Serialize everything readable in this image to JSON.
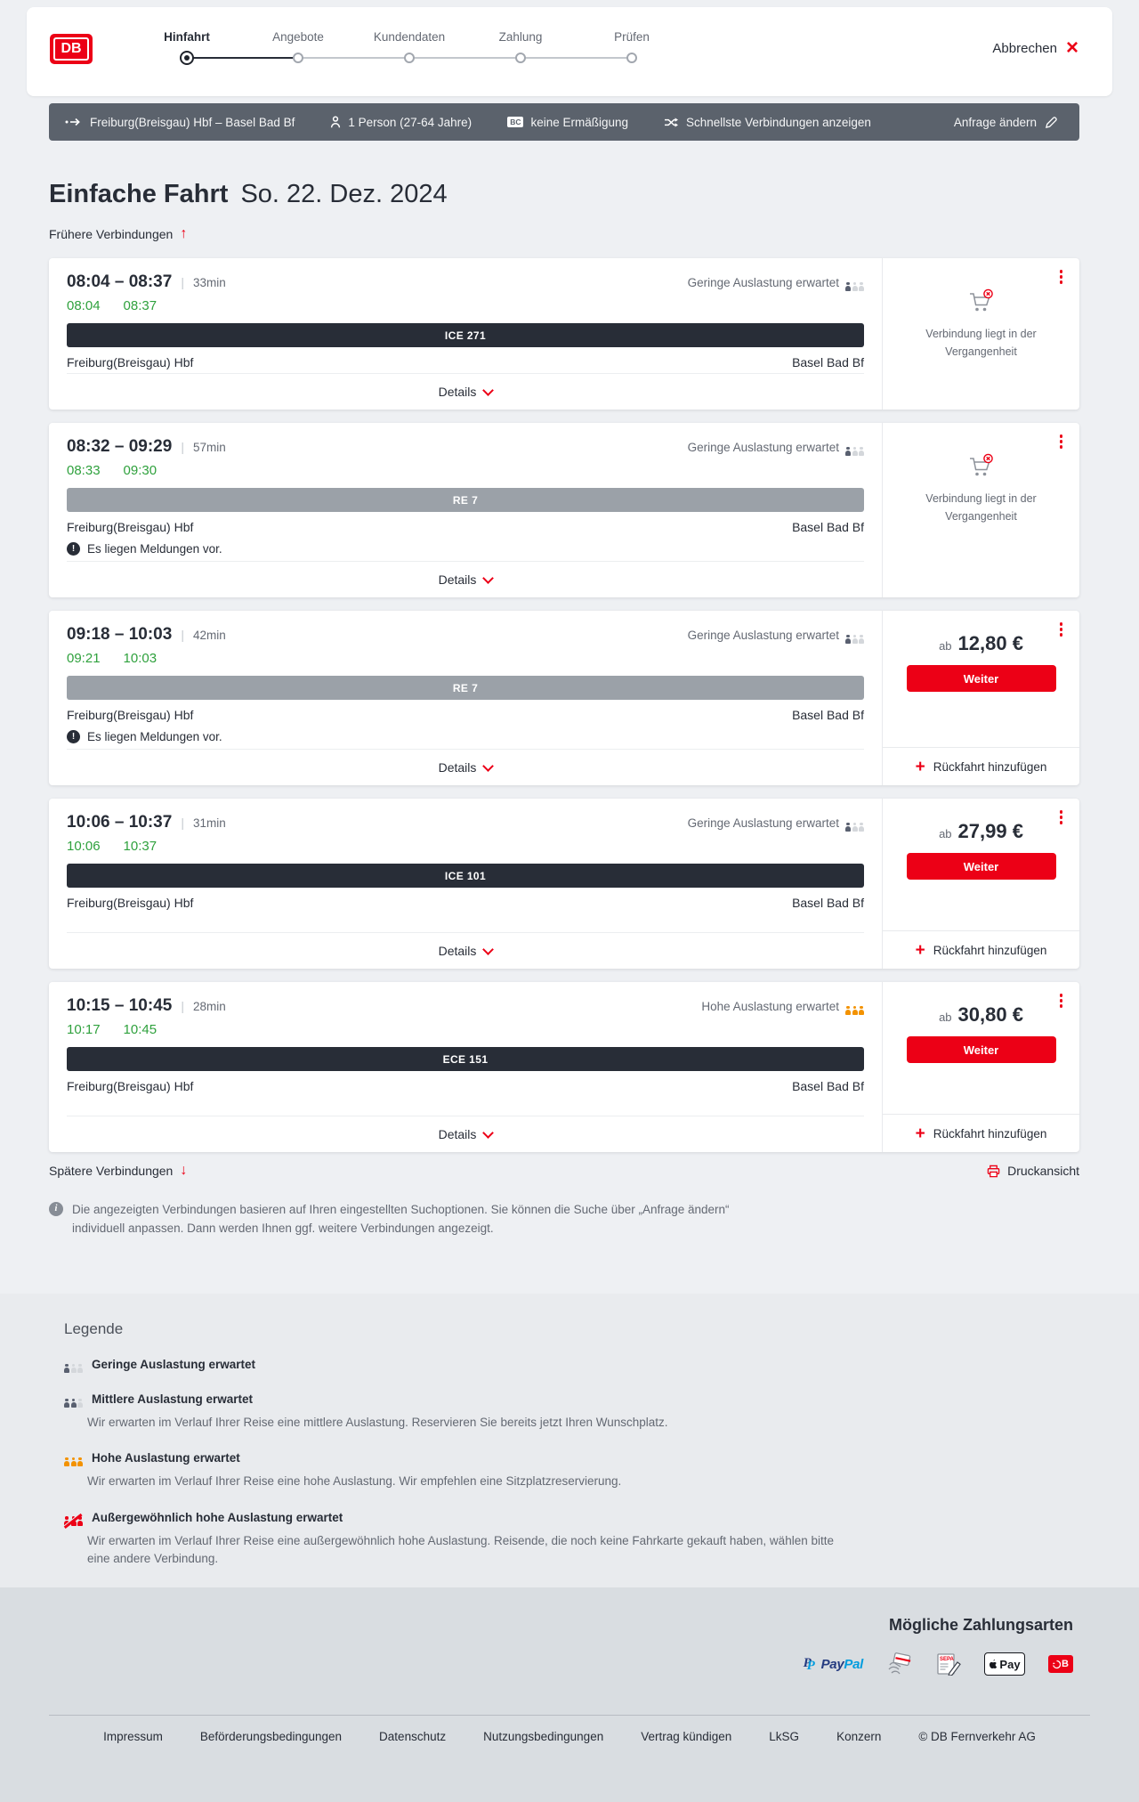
{
  "colors": {
    "accent_red": "#ec0016",
    "text_dark": "#282d37",
    "text_gray": "#646973",
    "time_green": "#2fa13d",
    "train_bar_express": "#282d37",
    "train_bar_regional": "#9ba1a8",
    "occupancy_person": "#596070",
    "occupancy_person_faint": "#d4d7db",
    "occupancy_high": "#f39200",
    "occupancy_exceptional": "#ec0016",
    "summary_bar_bg": "#5b626c"
  },
  "header": {
    "logo": "DB",
    "steps": [
      {
        "label": "Hinfahrt",
        "state": "active"
      },
      {
        "label": "Angebote",
        "state": "upcoming"
      },
      {
        "label": "Kundendaten",
        "state": "upcoming"
      },
      {
        "label": "Zahlung",
        "state": "upcoming"
      },
      {
        "label": "Prüfen",
        "state": "upcoming"
      }
    ],
    "cancel_label": "Abbrechen",
    "close_icon": "×"
  },
  "search_summary": {
    "route": "Freiburg(Breisgau) Hbf – Basel Bad Bf",
    "passengers": "1 Person (27-64 Jahre)",
    "bc_badge": "BC",
    "discount": "keine Ermäßigung",
    "sort": "Schnellste Verbindungen anzeigen",
    "edit_label": "Anfrage ändern"
  },
  "results": {
    "title": "Einfache Fahrt",
    "date": "So. 22. Dez. 2024",
    "earlier_label": "Frühere Verbindungen",
    "later_label": "Spätere Verbindungen",
    "print_label": "Druckansicht",
    "details_label": "Details",
    "continue_label": "Weiter",
    "add_return_label": "Rückfahrt hinzufügen",
    "price_prefix": "ab",
    "past_note": "Verbindung liegt in der Vergangenheit",
    "messages_note": "Es liegen Meldungen vor.",
    "info_text": "Die angezeigten Verbindungen basieren auf Ihren eingestellten Suchoptionen. Sie können die Suche über „Anfrage ändern“ individuell anpassen. Dann werden Ihnen ggf. weitere Verbindungen angezeigt.",
    "connections": [
      {
        "time_range": "08:04 – 08:37",
        "duration": "33min",
        "departure": "08:04",
        "arrival": "08:37",
        "train": "ICE 271",
        "train_style": "express",
        "from": "Freiburg(Breisgau) Hbf",
        "to": "Basel Bad Bf",
        "occupancy_label": "Geringe Auslastung erwartet",
        "occupancy_level": "low",
        "is_past": true,
        "has_messages": false,
        "price": null
      },
      {
        "time_range": "08:32 – 09:29",
        "duration": "57min",
        "departure": "08:33",
        "arrival": "09:30",
        "train": "RE 7",
        "train_style": "regional",
        "from": "Freiburg(Breisgau) Hbf",
        "to": "Basel Bad Bf",
        "occupancy_label": "Geringe Auslastung erwartet",
        "occupancy_level": "low",
        "is_past": true,
        "has_messages": true,
        "price": null
      },
      {
        "time_range": "09:18 – 10:03",
        "duration": "42min",
        "departure": "09:21",
        "arrival": "10:03",
        "train": "RE 7",
        "train_style": "regional",
        "from": "Freiburg(Breisgau) Hbf",
        "to": "Basel Bad Bf",
        "occupancy_label": "Geringe Auslastung erwartet",
        "occupancy_level": "low",
        "is_past": false,
        "has_messages": true,
        "price": "12,80 €"
      },
      {
        "time_range": "10:06 – 10:37",
        "duration": "31min",
        "departure": "10:06",
        "arrival": "10:37",
        "train": "ICE 101",
        "train_style": "express",
        "from": "Freiburg(Breisgau) Hbf",
        "to": "Basel Bad Bf",
        "occupancy_label": "Geringe Auslastung erwartet",
        "occupancy_level": "low",
        "is_past": false,
        "has_messages": false,
        "price": "27,99 €"
      },
      {
        "time_range": "10:15 – 10:45",
        "duration": "28min",
        "departure": "10:17",
        "arrival": "10:45",
        "train": "ECE 151",
        "train_style": "express",
        "from": "Freiburg(Breisgau) Hbf",
        "to": "Basel Bad Bf",
        "occupancy_label": "Hohe Auslastung erwartet",
        "occupancy_level": "high",
        "is_past": false,
        "has_messages": false,
        "price": "30,80 €"
      }
    ]
  },
  "legend": {
    "title": "Legende",
    "items": [
      {
        "level": "low",
        "label": "Geringe Auslastung erwartet",
        "description": ""
      },
      {
        "level": "medium",
        "label": "Mittlere Auslastung erwartet",
        "description": "Wir erwarten im Verlauf Ihrer Reise eine mittlere Auslastung. Reservieren Sie bereits jetzt Ihren Wunschplatz."
      },
      {
        "level": "high",
        "label": "Hohe Auslastung erwartet",
        "description": "Wir erwarten im Verlauf Ihrer Reise eine hohe Auslastung. Wir empfehlen eine Sitzplatzreservierung."
      },
      {
        "level": "exceptional",
        "label": "Außergewöhnlich hohe Auslastung erwartet",
        "description": "Wir erwarten im Verlauf Ihrer Reise eine außergewöhnlich hohe Auslastung. Reisende, die noch keine Fahrkarte gekauft haben, wählen bitte eine andere Verbindung."
      }
    ]
  },
  "payment": {
    "title": "Mögliche Zahlungsarten",
    "paypal_label_1": "Pay",
    "paypal_label_2": "Pal",
    "sepa_label": "SEPA",
    "applepay_label": "Pay",
    "voucher_label": "B"
  },
  "footer": {
    "links": [
      "Impressum",
      "Beförderungsbedingungen",
      "Datenschutz",
      "Nutzungsbedingungen",
      "Vertrag kündigen",
      "LkSG",
      "Konzern"
    ],
    "copyright": "© DB Fernverkehr AG"
  }
}
